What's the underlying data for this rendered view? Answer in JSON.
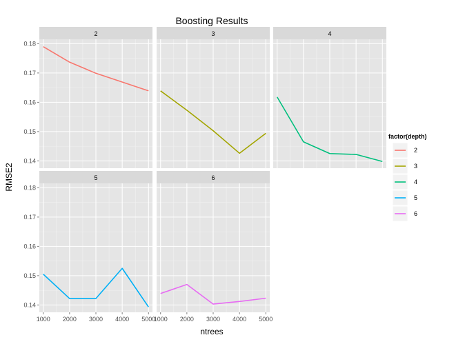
{
  "chart_data": {
    "type": "line",
    "title": "Boosting Results",
    "xlabel": "ntrees",
    "ylabel": "RMSE2",
    "x": [
      1000,
      2000,
      3000,
      4000,
      5000
    ],
    "xlim": [
      850,
      5150
    ],
    "ylim": [
      0.1375,
      0.1815
    ],
    "x_ticks": [
      "1000",
      "2000",
      "3000",
      "4000",
      "5000"
    ],
    "y_ticks": [
      "0.14",
      "0.15",
      "0.16",
      "0.17",
      "0.18"
    ],
    "grid": true,
    "facet_by": "depth",
    "legend_title": "factor(depth)",
    "legend_position": "right",
    "series": [
      {
        "name": "2",
        "color": "#F8766D",
        "values": [
          0.179,
          0.1737,
          0.1699,
          0.1669,
          0.1639
        ]
      },
      {
        "name": "3",
        "color": "#A3A500",
        "values": [
          0.1639,
          0.1573,
          0.1503,
          0.1426,
          0.1494
        ]
      },
      {
        "name": "4",
        "color": "#00BF7D",
        "values": [
          0.1618,
          0.1465,
          0.1425,
          0.1422,
          0.1398
        ]
      },
      {
        "name": "5",
        "color": "#00B0F6",
        "values": [
          0.1505,
          0.1422,
          0.1422,
          0.1525,
          0.1393
        ]
      },
      {
        "name": "6",
        "color": "#E76BF3",
        "values": [
          0.1439,
          0.147,
          0.1403,
          0.1412,
          0.1423
        ]
      }
    ]
  }
}
